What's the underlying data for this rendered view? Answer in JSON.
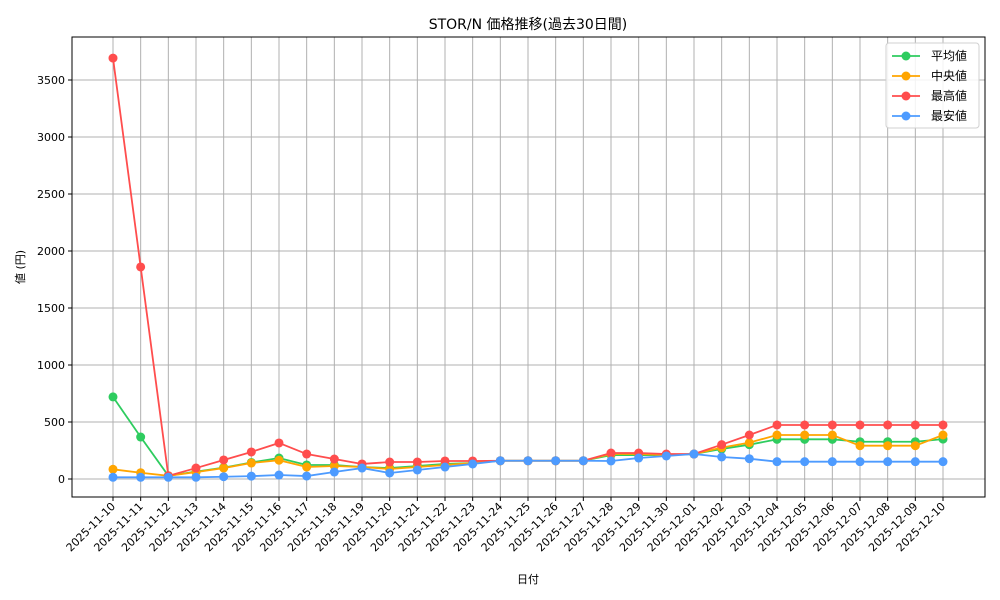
{
  "chart_data": {
    "type": "line",
    "title": "STOR/N 価格推移(過去30日間)",
    "xlabel": "日付",
    "ylabel": "値 (円)",
    "ylim": [
      -160,
      3860
    ],
    "yticks": [
      0,
      500,
      1000,
      1500,
      2000,
      2500,
      3000,
      3500
    ],
    "grid": true,
    "legend_position": "upper right",
    "categories": [
      "2025-11-10",
      "2025-11-11",
      "2025-11-12",
      "2025-11-13",
      "2025-11-14",
      "2025-11-15",
      "2025-11-16",
      "2025-11-17",
      "2025-11-18",
      "2025-11-19",
      "2025-11-20",
      "2025-11-21",
      "2025-11-22",
      "2025-11-23",
      "2025-11-24",
      "2025-11-25",
      "2025-11-26",
      "2025-11-27",
      "2025-11-28",
      "2025-11-29",
      "2025-11-30",
      "2025-12-01",
      "2025-12-02",
      "2025-12-03",
      "2025-12-04",
      "2025-12-05",
      "2025-12-06",
      "2025-12-07",
      "2025-12-08",
      "2025-12-09",
      "2025-12-10"
    ],
    "series": [
      {
        "name": "平均値",
        "color": "#2ecc5f",
        "values": [
          720,
          368,
          28,
          65,
          100,
          145,
          184,
          123,
          123,
          105,
          96,
          114,
          132,
          140,
          160,
          160,
          160,
          160,
          210,
          210,
          210,
          219,
          263,
          301,
          348,
          348,
          348,
          327,
          327,
          327,
          350
        ]
      },
      {
        "name": "中央値",
        "color": "#ffa500",
        "values": [
          85,
          55,
          28,
          60,
          96,
          140,
          165,
          105,
          114,
          105,
          88,
          105,
          123,
          140,
          160,
          160,
          160,
          160,
          219,
          219,
          210,
          219,
          275,
          319,
          386,
          386,
          386,
          292,
          292,
          292,
          386
        ]
      },
      {
        "name": "最高値",
        "color": "#ff4d4d",
        "values": [
          3692,
          1860,
          28,
          96,
          167,
          237,
          316,
          219,
          175,
          132,
          149,
          149,
          158,
          158,
          160,
          160,
          160,
          160,
          228,
          228,
          219,
          219,
          301,
          386,
          474,
          474,
          474,
          474,
          474,
          474,
          474
        ]
      },
      {
        "name": "最安値",
        "color": "#4d9bff",
        "values": [
          15,
          15,
          15,
          15,
          20,
          25,
          35,
          26,
          61,
          96,
          53,
          79,
          105,
          132,
          160,
          160,
          160,
          160,
          158,
          184,
          202,
          219,
          193,
          178,
          152,
          152,
          152,
          152,
          152,
          152,
          152
        ]
      }
    ]
  }
}
